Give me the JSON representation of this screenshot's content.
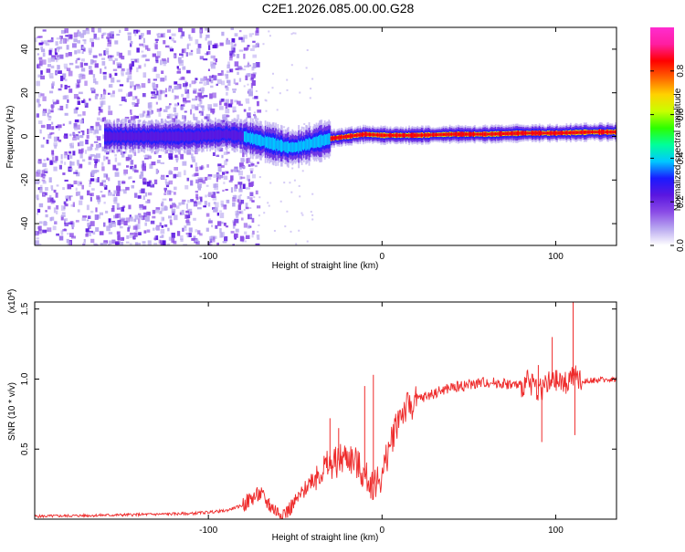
{
  "figure": {
    "title": "C2E1.2026.085.00.00.G28"
  },
  "colors": {
    "spectrum": [
      "#ffffff",
      "#b9a8f0",
      "#8a4be6",
      "#5a16e0",
      "#1a1aff",
      "#00c8ff",
      "#00ff9a",
      "#2cff00",
      "#c8ff00",
      "#ffd200",
      "#ff6400",
      "#ff0000",
      "#ff1ea0",
      "#ff2cd0"
    ],
    "snr_line": "#ee2a2a",
    "ridge": "#ff0000"
  },
  "chart_data": [
    {
      "id": "spectrogram",
      "type": "heatmap",
      "title": "C2E1.2026.085.00.00.G28",
      "xlabel": "Height of straight line (km)",
      "ylabel": "Frequency (Hz)",
      "xlim": [
        -200,
        135
      ],
      "ylim": [
        -50,
        50
      ],
      "xticks": [
        -100,
        0,
        100
      ],
      "yticks": [
        -40,
        -20,
        0,
        20,
        40
      ],
      "ridge": {
        "x": [
          -160,
          -110,
          -90,
          -80,
          -70,
          -60,
          -55,
          -50,
          -45,
          -40,
          -30,
          -20,
          -10,
          0,
          20,
          40,
          60,
          80,
          100,
          120,
          135
        ],
        "y": [
          0,
          0,
          1,
          0,
          -2,
          -4,
          -5,
          -5,
          -4,
          -3,
          -1,
          0,
          1,
          0.5,
          0.5,
          1,
          1,
          1.5,
          1.5,
          2,
          2
        ]
      },
      "noise_region_km": [
        -200,
        -80
      ],
      "colorbar": {
        "label": "Normalized spectral amplitude",
        "range": [
          0,
          1
        ],
        "ticks": [
          "0.0",
          "0.2",
          "0.4",
          "0.6",
          "0.8"
        ]
      }
    },
    {
      "id": "snr",
      "type": "line",
      "xlabel": "Height of straight line (km)",
      "ylabel": "SNR (10 * v/v)",
      "scale_label": "(x10",
      "scale_exp": "4",
      "scale_close": ")",
      "xlim": [
        -200,
        135
      ],
      "ylim": [
        0,
        1.55
      ],
      "xticks": [
        -100,
        0,
        100
      ],
      "yticks": [
        0.5,
        1.0,
        1.5
      ],
      "series": [
        {
          "name": "SNR",
          "x": [
            -200,
            -150,
            -110,
            -90,
            -80,
            -75,
            -70,
            -65,
            -60,
            -55,
            -50,
            -45,
            -40,
            -35,
            -30,
            -25,
            -20,
            -15,
            -10,
            -5,
            0,
            5,
            10,
            20,
            30,
            40,
            50,
            60,
            70,
            80,
            85,
            90,
            95,
            100,
            105,
            110,
            115,
            120,
            135
          ],
          "y": [
            0.02,
            0.03,
            0.04,
            0.06,
            0.1,
            0.15,
            0.18,
            0.1,
            0.05,
            0.05,
            0.12,
            0.2,
            0.3,
            0.35,
            0.38,
            0.42,
            0.45,
            0.4,
            0.3,
            0.25,
            0.3,
            0.55,
            0.75,
            0.85,
            0.9,
            0.94,
            0.96,
            0.98,
            0.97,
            0.95,
            0.98,
            0.93,
            0.96,
            0.98,
            0.97,
            1.02,
            0.98,
            0.99,
            1.0
          ]
        }
      ],
      "peaks": {
        "x": [
          -65,
          -30,
          -25,
          -10,
          -5,
          90,
          92,
          98,
          110,
          111
        ],
        "y": [
          0.15,
          0.72,
          0.65,
          0.95,
          1.03,
          1.1,
          0.55,
          1.3,
          1.55,
          0.6
        ]
      }
    }
  ]
}
